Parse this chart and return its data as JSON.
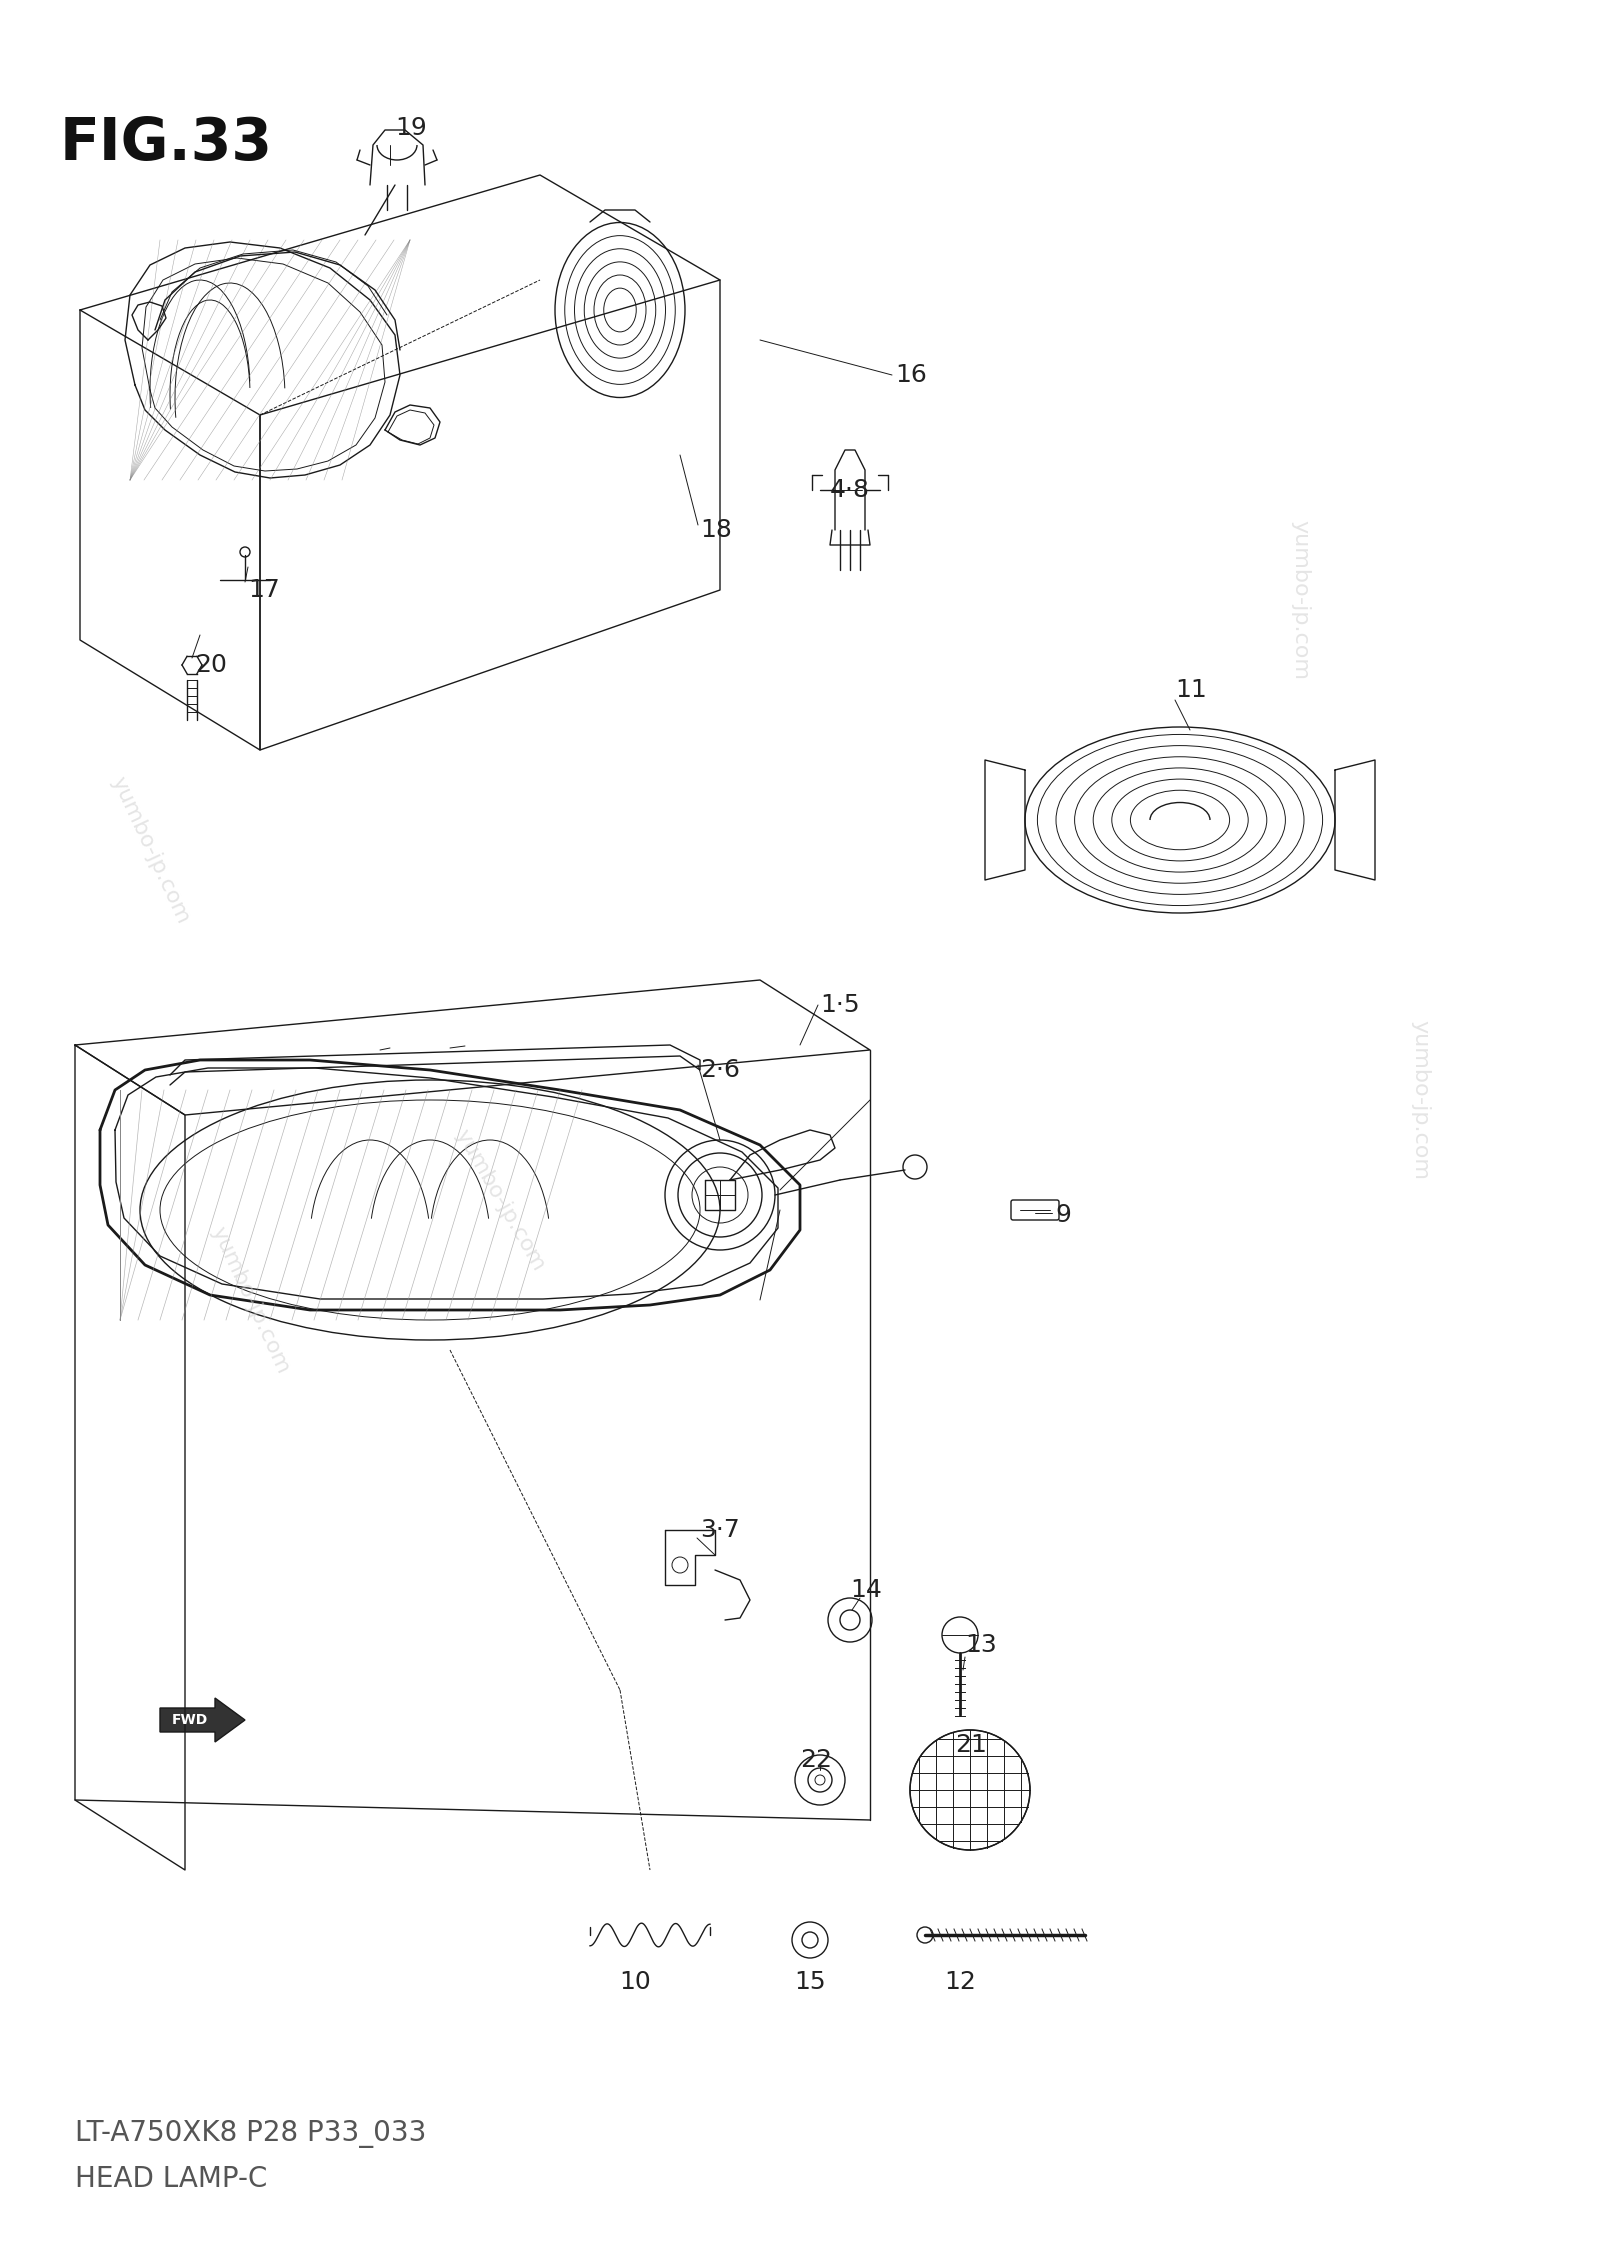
{
  "title": "FIG.33",
  "subtitle1": "LT-A750XK8 P28 P33_033",
  "subtitle2": "HEAD LAMP-C",
  "bg_color": "#ffffff",
  "line_color": "#1a1a1a",
  "watermark_color": "#d0d0d0",
  "watermark_text": "yumbo-jp.com",
  "fig_width": 16.0,
  "fig_height": 22.63
}
